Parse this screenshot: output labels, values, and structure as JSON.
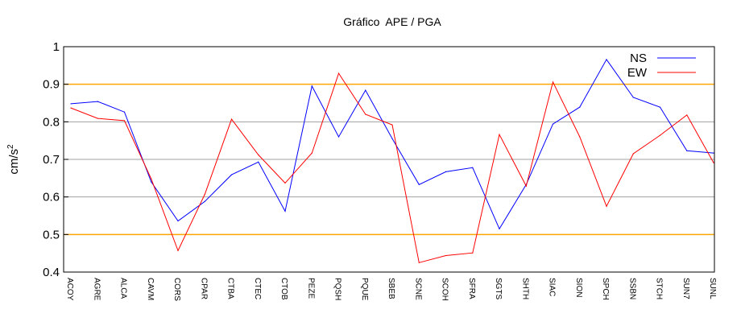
{
  "chart_data": {
    "type": "line",
    "title": "Gráfico  APE / PGA",
    "xlabel": "",
    "ylabel": "cm/s",
    "ylabel_superscript": "2",
    "ylim": [
      0.4,
      1.0
    ],
    "yticks": [
      0.4,
      0.5,
      0.6,
      0.7,
      0.8,
      0.9,
      1.0
    ],
    "ytick_labels": [
      "0.4",
      "0.5",
      "0.6",
      "0.7",
      "0.8",
      "0.9",
      "1"
    ],
    "highlight_gridlines": [
      0.5,
      0.9
    ],
    "grid": true,
    "legend_position": "top-right",
    "categories": [
      "ACOY",
      "AGRE",
      "ALCA",
      "CAVM",
      "CORS",
      "CPAR",
      "CTBA",
      "CTEC",
      "CTOB",
      "PEZE",
      "PQSH",
      "PQUE",
      "SBEB",
      "SCNE",
      "SCOH",
      "SFRA",
      "SGTS",
      "SHTH",
      "SIAC",
      "SION",
      "SPCH",
      "SSBN",
      "STCH",
      "SUN7",
      "SUNL"
    ],
    "series": [
      {
        "name": "NS",
        "color": "#0000ff",
        "values": [
          0.848,
          0.854,
          0.826,
          0.64,
          0.536,
          0.588,
          0.659,
          0.693,
          0.562,
          0.895,
          0.76,
          0.884,
          0.755,
          0.633,
          0.667,
          0.678,
          0.515,
          0.633,
          0.794,
          0.839,
          0.966,
          0.865,
          0.839,
          0.723,
          0.717
        ]
      },
      {
        "name": "EW",
        "color": "#ff0000",
        "values": [
          0.837,
          0.809,
          0.803,
          0.648,
          0.457,
          0.607,
          0.807,
          0.712,
          0.637,
          0.717,
          0.929,
          0.82,
          0.792,
          0.425,
          0.444,
          0.451,
          0.766,
          0.629,
          0.906,
          0.76,
          0.575,
          0.715,
          0.764,
          0.818,
          0.691
        ]
      }
    ],
    "colors": {
      "grid": "#a0a0a0",
      "highlight_grid": "#ffa500",
      "axis": "#000000"
    }
  }
}
